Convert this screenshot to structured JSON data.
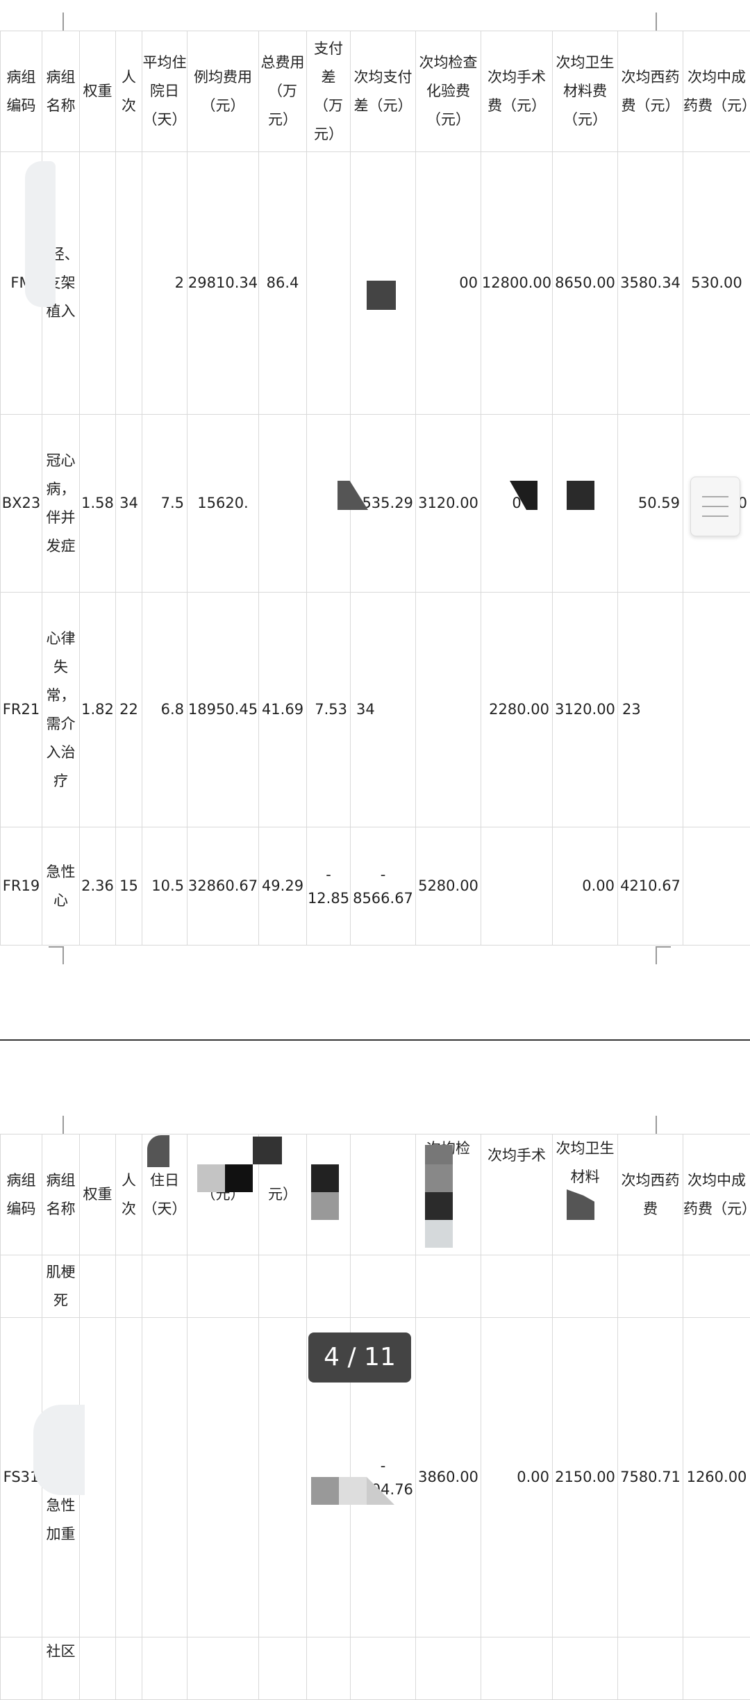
{
  "headers": [
    "病组编码",
    "病组名称",
    "权重",
    "人次",
    "平均住院日（天）",
    "例均费用（元）",
    "总费用（万元）",
    "支付差（万元）",
    "次均支付差（元）",
    "次均检查化验费（元）",
    "次均手术费（元）",
    "次均卫生材料费（元）",
    "次均西药费（元）",
    "次均中成药费（元）"
  ],
  "page1_rows": [
    {
      "code": "FM",
      "name": "经、　　　　支架植入",
      "weight": "",
      "count": "",
      "los": "2",
      "avg_cost": "29810.34",
      "total": "86.4",
      "pay_diff": "",
      "avg_pay_diff": "",
      "exam": "00",
      "surgery": "12800.00",
      "material": "8650.00",
      "western": "3580.34",
      "chinese": "530.00"
    },
    {
      "code": "BX23",
      "name": "冠心病，伴并发症",
      "weight": "1.58",
      "count": "34",
      "los": "7.5",
      "avg_cost": "15620.",
      "total": "",
      "pay_diff": "",
      "avg_pay_diff": "2535.29",
      "exam": "3120.00",
      "surgery": "0",
      "material": "",
      "western": "50.59",
      "chinese": "0"
    },
    {
      "code": "FR21",
      "name": "心律失常，需介入治疗",
      "weight": "1.82",
      "count": "22",
      "los": "6.8",
      "avg_cost": "18950.45",
      "total": "41.69",
      "pay_diff": "7.53",
      "avg_pay_diff": "34",
      "exam": "",
      "surgery": "2280.00",
      "material": "3120.00",
      "western": "23",
      "chinese": ""
    },
    {
      "code": "FR19",
      "name": "急性心",
      "weight": "2.36",
      "count": "15",
      "los": "10.5",
      "avg_cost": "32860.67",
      "total": "49.29",
      "pay_diff": "-\n12.85",
      "avg_pay_diff": "-\n8566.67",
      "exam": "5280.00",
      "surgery": "",
      "material": "0.00",
      "western": "4210.67",
      "chinese": ""
    }
  ],
  "page2_header_partial": [
    "病组编码",
    "病组名称",
    "权重",
    "人次",
    "住日（天）",
    "（元）",
    "元）",
    "元）",
    "",
    "次均检",
    "次均手术",
    "次均卫生材料",
    "次均西药费",
    "次均中成药费（元）"
  ],
  "page2_rows": [
    {
      "code": "",
      "name": "肌梗死"
    },
    {
      "code": "FS31",
      "name": "慢性阻　　　疾病急性加重",
      "pay_diff": "-",
      "avg_pay_diff": "-\n2304.76",
      "exam": "3860.00",
      "surgery": "0.00",
      "material": "2150.00",
      "western": "7580.71",
      "chinese": "1260.00"
    },
    {
      "code": "",
      "name": "社区"
    }
  ],
  "pager": "4 / 11"
}
